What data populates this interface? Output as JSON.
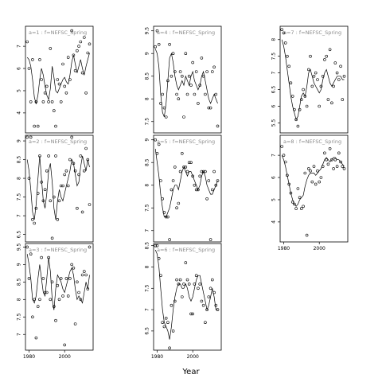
{
  "figure": {
    "xlabel": "Year"
  },
  "chart_data": [
    {
      "type": "scatter",
      "title": "a=1 : f=NEFSC_Spring",
      "show_x_ticks": false,
      "xlim": [
        1978,
        2016
      ],
      "ylim": [
        3.1,
        7.9
      ],
      "yticks": [
        4,
        5,
        6,
        7
      ],
      "xticks": [],
      "x": [
        1979,
        1980,
        1981,
        1982,
        1983,
        1984,
        1985,
        1986,
        1987,
        1988,
        1989,
        1990,
        1991,
        1992,
        1993,
        1994,
        1995,
        1996,
        1997,
        1998,
        1999,
        2000,
        2001,
        2002,
        2003,
        2004,
        2005,
        2006,
        2007,
        2008,
        2009,
        2010,
        2011,
        2012,
        2013,
        2014
      ],
      "y": [
        7.2,
        6.0,
        4.5,
        6.4,
        3.4,
        4.5,
        3.4,
        6.4,
        5.5,
        4.5,
        4.9,
        5.2,
        4.5,
        6.9,
        4.5,
        4.1,
        3.4,
        5.5,
        5.3,
        4.5,
        6.2,
        5.2,
        4.9,
        6.5,
        5.5,
        7.7,
        6.6,
        5.9,
        6.8,
        7.0,
        7.2,
        5.8,
        7.4,
        4.9,
        6.7,
        7.1
      ],
      "fit": [
        6.5,
        6.4,
        6.1,
        5.5,
        4.7,
        4.4,
        4.8,
        5.5,
        6.0,
        5.7,
        5.2,
        4.8,
        4.6,
        5.1,
        6.1,
        5.6,
        5.0,
        4.9,
        5.1,
        5.3,
        5.5,
        5.6,
        5.4,
        5.3,
        5.7,
        6.3,
        6.6,
        6.2,
        5.8,
        6.1,
        6.4,
        6.0,
        5.7,
        6.1,
        6.4,
        6.7
      ]
    },
    {
      "type": "scatter",
      "title": "a=2 : f=NEFSC_Spring",
      "show_x_ticks": false,
      "xlim": [
        1978,
        2016
      ],
      "ylim": [
        6.3,
        9.15
      ],
      "yticks": [
        6.5,
        7.0,
        7.5,
        8.0,
        8.5,
        9.0
      ],
      "xticks": [],
      "x": [
        1979,
        1980,
        1981,
        1982,
        1983,
        1984,
        1985,
        1986,
        1987,
        1988,
        1989,
        1990,
        1991,
        1992,
        1993,
        1994,
        1995,
        1996,
        1997,
        1998,
        1999,
        2000,
        2001,
        2002,
        2003,
        2004,
        2005,
        2006,
        2007,
        2008,
        2009,
        2010,
        2011,
        2012,
        2013,
        2014
      ],
      "y": [
        9.1,
        8.0,
        9.1,
        6.9,
        6.8,
        7.2,
        7.6,
        8.6,
        7.9,
        7.4,
        7.7,
        8.2,
        8.6,
        7.4,
        6.4,
        7.5,
        8.6,
        6.9,
        7.4,
        7.8,
        7.8,
        8.1,
        8.2,
        7.8,
        8.5,
        9.1,
        8.4,
        8.2,
        7.2,
        8.1,
        8.6,
        7.1,
        8.2,
        8.8,
        8.5,
        7.3
      ],
      "fit": [
        8.5,
        8.2,
        7.7,
        7.1,
        6.9,
        7.3,
        8.0,
        8.6,
        8.0,
        7.4,
        7.2,
        7.6,
        8.2,
        8.4,
        7.9,
        7.2,
        6.9,
        7.4,
        7.7,
        7.5,
        7.4,
        7.6,
        7.8,
        8.0,
        8.2,
        8.5,
        8.4,
        8.1,
        7.8,
        7.9,
        8.3,
        8.6,
        8.4,
        8.2,
        8.5,
        8.3
      ]
    },
    {
      "type": "scatter",
      "title": "a=3 : f=NEFSC_Spring",
      "show_x_ticks": true,
      "xlim": [
        1978,
        2016
      ],
      "ylim": [
        6.55,
        9.6
      ],
      "yticks": [
        7.0,
        7.5,
        8.0,
        8.5,
        9.0,
        9.5
      ],
      "xticks": [
        1980,
        2000
      ],
      "x": [
        1979,
        1980,
        1981,
        1982,
        1983,
        1984,
        1985,
        1986,
        1987,
        1988,
        1989,
        1990,
        1991,
        1992,
        1993,
        1994,
        1995,
        1996,
        1997,
        1998,
        1999,
        2000,
        2001,
        2002,
        2003,
        2004,
        2005,
        2006,
        2007,
        2008,
        2009,
        2010,
        2011,
        2012,
        2013,
        2014
      ],
      "y": [
        9.5,
        8.6,
        9.3,
        7.5,
        8.0,
        6.9,
        7.8,
        8.0,
        9.2,
        8.6,
        8.2,
        8.2,
        9.2,
        8.0,
        8.5,
        7.8,
        7.4,
        8.4,
        8.0,
        8.6,
        8.1,
        6.7,
        8.6,
        8.1,
        8.6,
        9.0,
        8.9,
        7.3,
        8.5,
        8.2,
        8.0,
        8.7,
        8.8,
        8.7,
        8.3,
        9.5
      ],
      "fit": [
        9.3,
        9.0,
        8.6,
        8.0,
        7.9,
        8.1,
        8.6,
        9.0,
        8.6,
        8.2,
        8.1,
        8.6,
        9.2,
        8.8,
        8.0,
        7.7,
        8.3,
        8.7,
        8.6,
        8.5,
        8.3,
        8.2,
        8.4,
        8.6,
        8.8,
        8.9,
        8.7,
        8.3,
        8.0,
        8.1,
        8.0,
        7.9,
        8.2,
        8.5,
        8.3,
        8.7
      ]
    },
    {
      "type": "scatter",
      "title": "a=4 : f=NEFSC_Spring",
      "show_x_ticks": false,
      "xlim": [
        1978,
        2016
      ],
      "ylim": [
        7.25,
        9.6
      ],
      "yticks": [
        7.5,
        8.0,
        8.5,
        9.0,
        9.5
      ],
      "xticks": [],
      "x": [
        1979,
        1980,
        1981,
        1982,
        1983,
        1984,
        1985,
        1986,
        1987,
        1988,
        1989,
        1990,
        1991,
        1992,
        1993,
        1994,
        1995,
        1996,
        1997,
        1998,
        1999,
        2000,
        2001,
        2002,
        2003,
        2004,
        2005,
        2006,
        2007,
        2008,
        2009,
        2010,
        2011,
        2012,
        2013,
        2014
      ],
      "y": [
        9.15,
        9.5,
        9.2,
        7.9,
        8.1,
        7.8,
        7.6,
        8.4,
        9.2,
        8.5,
        9.0,
        8.6,
        8.1,
        8.0,
        8.6,
        8.5,
        7.6,
        9.0,
        8.1,
        8.5,
        8.3,
        8.8,
        8.1,
        8.6,
        7.9,
        8.3,
        8.9,
        8.5,
        8.1,
        8.6,
        7.8,
        7.8,
        8.6,
        8.7,
        8.1,
        7.4
      ],
      "fit": [
        9.1,
        9.0,
        8.7,
        8.1,
        7.7,
        7.6,
        7.9,
        8.4,
        8.9,
        9.0,
        8.8,
        8.5,
        8.3,
        8.2,
        8.3,
        8.4,
        8.3,
        8.5,
        8.4,
        8.3,
        8.5,
        8.6,
        8.4,
        8.3,
        8.2,
        8.3,
        8.5,
        8.6,
        8.4,
        8.2,
        8.0,
        7.9,
        8.0,
        8.1,
        8.0,
        7.9
      ]
    },
    {
      "type": "scatter",
      "title": "a=5 : f=NEFSC_Spring",
      "show_x_ticks": false,
      "xlim": [
        1978,
        2016
      ],
      "ylim": [
        6.75,
        9.1
      ],
      "yticks": [
        7.0,
        7.5,
        8.0,
        8.5,
        9.0
      ],
      "xticks": [],
      "x": [
        1979,
        1980,
        1981,
        1982,
        1983,
        1984,
        1985,
        1986,
        1987,
        1988,
        1989,
        1990,
        1991,
        1992,
        1993,
        1994,
        1995,
        1996,
        1997,
        1998,
        1999,
        2000,
        2001,
        2002,
        2003,
        2004,
        2005,
        2006,
        2007,
        2008,
        2009,
        2010,
        2011,
        2012,
        2013,
        2014
      ],
      "y": [
        9.0,
        8.7,
        8.9,
        8.1,
        7.7,
        7.4,
        7.3,
        7.3,
        6.8,
        7.9,
        8.1,
        8.4,
        7.5,
        7.6,
        8.3,
        8.7,
        8.4,
        8.4,
        8.3,
        8.5,
        8.5,
        8.2,
        8.0,
        7.9,
        7.9,
        8.2,
        8.3,
        8.3,
        8.3,
        7.7,
        8.1,
        6.8,
        7.9,
        8.3,
        8.0,
        8.1
      ],
      "fit": [
        8.8,
        8.5,
        8.2,
        7.8,
        7.5,
        7.3,
        7.3,
        7.4,
        7.5,
        7.7,
        7.9,
        8.0,
        8.0,
        7.9,
        8.1,
        8.3,
        8.4,
        8.3,
        8.2,
        8.3,
        8.3,
        8.2,
        8.1,
        8.0,
        7.9,
        8.0,
        8.2,
        8.3,
        8.2,
        8.0,
        7.9,
        7.8,
        7.8,
        7.9,
        8.0,
        8.1
      ]
    },
    {
      "type": "scatter",
      "title": "a=6 : f=NEFSC_Spring",
      "show_x_ticks": true,
      "xlim": [
        1978,
        2016
      ],
      "ylim": [
        6.05,
        8.55
      ],
      "yticks": [
        6.5,
        7.0,
        7.5,
        8.0,
        8.5
      ],
      "xticks": [
        1980,
        2000
      ],
      "x": [
        1979,
        1980,
        1981,
        1982,
        1983,
        1984,
        1985,
        1986,
        1987,
        1988,
        1989,
        1990,
        1991,
        1992,
        1993,
        1994,
        1995,
        1996,
        1997,
        1998,
        1999,
        2000,
        2001,
        2002,
        2003,
        2004,
        2005,
        2006,
        2007,
        2008,
        2009,
        2010,
        2011,
        2012,
        2013,
        2014
      ],
      "y": [
        8.5,
        8.5,
        8.2,
        7.8,
        6.7,
        6.6,
        6.8,
        6.7,
        6.1,
        7.1,
        6.5,
        7.2,
        7.7,
        7.6,
        7.7,
        7.3,
        7.6,
        8.1,
        7.7,
        7.6,
        6.9,
        6.9,
        7.6,
        7.8,
        7.5,
        7.6,
        7.2,
        7.1,
        6.7,
        7.0,
        7.3,
        7.5,
        7.7,
        7.4,
        7.1,
        7.0
      ],
      "fit": [
        8.4,
        8.3,
        8.0,
        7.5,
        7.0,
        6.7,
        6.6,
        6.5,
        6.3,
        6.6,
        7.0,
        7.3,
        7.5,
        7.6,
        7.6,
        7.5,
        7.5,
        7.6,
        7.5,
        7.3,
        7.2,
        7.3,
        7.5,
        7.7,
        7.8,
        7.8,
        7.6,
        7.4,
        7.2,
        7.0,
        7.1,
        7.3,
        7.5,
        7.3,
        7.0,
        7.0
      ]
    },
    {
      "type": "scatter",
      "title": "a=7 : f=NEFSC_Spring",
      "show_x_ticks": false,
      "xlim": [
        1978,
        2016
      ],
      "ylim": [
        5.2,
        8.4
      ],
      "yticks": [
        5.5,
        6.0,
        6.5,
        7.0,
        7.5,
        8.0
      ],
      "xticks": [],
      "x": [
        1979,
        1980,
        1981,
        1982,
        1983,
        1984,
        1985,
        1986,
        1987,
        1988,
        1989,
        1990,
        1991,
        1992,
        1993,
        1994,
        1995,
        1996,
        1997,
        1998,
        1999,
        2000,
        2001,
        2002,
        2003,
        2004,
        2005,
        2006,
        2007,
        2008,
        2009,
        2010,
        2011,
        2012,
        2013,
        2014
      ],
      "y": [
        8.3,
        8.2,
        7.9,
        7.5,
        7.2,
        6.7,
        6.3,
        5.9,
        5.6,
        5.4,
        5.9,
        6.2,
        6.5,
        6.3,
        6.0,
        7.1,
        7.5,
        6.6,
        6.9,
        7.0,
        6.8,
        6.0,
        6.6,
        6.9,
        7.4,
        7.5,
        6.2,
        7.7,
        6.1,
        6.6,
        7.3,
        7.0,
        6.8,
        7.2,
        6.2,
        6.9
      ],
      "fit": [
        8.0,
        7.8,
        7.5,
        7.1,
        6.7,
        6.3,
        6.0,
        5.8,
        5.6,
        5.7,
        6.0,
        6.3,
        6.4,
        6.3,
        6.6,
        7.0,
        7.1,
        6.9,
        6.7,
        6.6,
        6.5,
        6.4,
        6.5,
        6.8,
        7.0,
        7.1,
        6.9,
        6.7,
        6.6,
        6.7,
        6.8,
        6.9,
        6.9,
        6.9,
        6.8,
        6.8
      ]
    },
    {
      "type": "scatter",
      "title": "a=8 : f=NEFSC_Spring",
      "show_x_ticks": true,
      "xlim": [
        1978,
        2016
      ],
      "ylim": [
        3.1,
        7.9
      ],
      "yticks": [
        4,
        5,
        6,
        7
      ],
      "xticks": [
        1980,
        2000
      ],
      "x": [
        1979,
        1980,
        1981,
        1982,
        1983,
        1984,
        1985,
        1986,
        1987,
        1988,
        1989,
        1990,
        1991,
        1992,
        1993,
        1994,
        1995,
        1996,
        1997,
        1998,
        1999,
        2000,
        2001,
        2002,
        2003,
        2004,
        2005,
        2006,
        2007,
        2008,
        2009,
        2010,
        2011,
        2012,
        2013,
        2014
      ],
      "y": [
        7.4,
        7.0,
        6.7,
        6.1,
        5.7,
        5.3,
        4.9,
        4.8,
        4.6,
        5.5,
        5.1,
        4.6,
        4.7,
        6.2,
        3.4,
        6.4,
        6.3,
        5.8,
        6.5,
        5.7,
        6.3,
        5.8,
        6.0,
        6.5,
        7.1,
        6.8,
        6.6,
        7.3,
        6.8,
        6.4,
        6.8,
        6.5,
        7.1,
        6.7,
        6.5,
        6.4
      ],
      "fit": [
        7.0,
        6.8,
        6.5,
        6.1,
        5.7,
        5.3,
        5.0,
        4.8,
        4.7,
        4.8,
        5.0,
        5.1,
        5.2,
        5.6,
        5.9,
        6.1,
        6.2,
        6.2,
        6.2,
        6.1,
        6.2,
        6.3,
        6.4,
        6.6,
        6.8,
        6.9,
        6.8,
        6.7,
        6.8,
        6.9,
        6.9,
        6.8,
        6.8,
        6.7,
        6.6,
        6.5
      ]
    }
  ]
}
